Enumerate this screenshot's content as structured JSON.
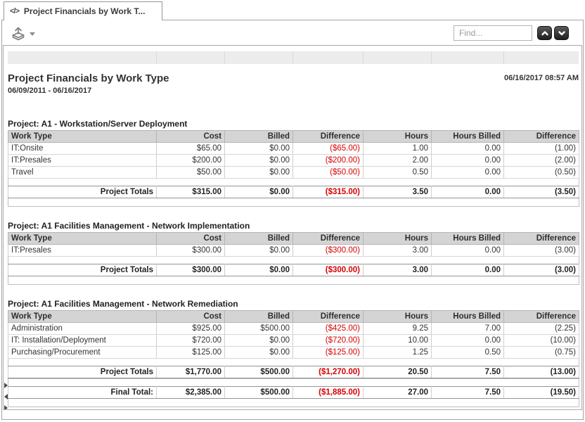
{
  "tab": {
    "icon_glyph": "</>",
    "label": "Project Financials by Work T..."
  },
  "toolbar": {
    "find_placeholder": "Find..."
  },
  "icons": {
    "tab": "code-icon",
    "export": "export-icon",
    "export_caret": "caret-down-icon",
    "find_previous": "chevron-up-icon",
    "find_next": "chevron-down-icon",
    "gutter_markers": [
      "triangle-right-icon",
      "triangle-left-icon",
      "triangle-right-icon"
    ]
  },
  "report": {
    "title": "Project Financials by Work Type",
    "date_range": "06/09/2011 - 06/16/2017",
    "generated": "06/16/2017 08:57 AM",
    "columns": [
      "Work Type",
      "Cost",
      "Billed",
      "Difference",
      "Hours",
      "Hours Billed",
      "Difference"
    ],
    "sections": [
      {
        "title": "Project: A1 - Workstation/Server Deployment",
        "rows": [
          [
            "IT:Onsite",
            "$65.00",
            "$0.00",
            "($65.00)",
            "1.00",
            "0.00",
            "(1.00)"
          ],
          [
            "IT:Presales",
            "$200.00",
            "$0.00",
            "($200.00)",
            "2.00",
            "0.00",
            "(2.00)"
          ],
          [
            "Travel",
            "$50.00",
            "$0.00",
            "($50.00)",
            "0.50",
            "0.00",
            "(0.50)"
          ]
        ],
        "totals": [
          "Project Totals",
          "$315.00",
          "$0.00",
          "($315.00)",
          "3.50",
          "0.00",
          "(3.50)"
        ]
      },
      {
        "title": "Project: A1 Facilities Management - Network Implementation",
        "rows": [
          [
            "IT:Presales",
            "$300.00",
            "$0.00",
            "($300.00)",
            "3.00",
            "0.00",
            "(3.00)"
          ]
        ],
        "totals": [
          "Project Totals",
          "$300.00",
          "$0.00",
          "($300.00)",
          "3.00",
          "0.00",
          "(3.00)"
        ]
      },
      {
        "title": "Project: A1 Facilities Management - Network Remediation",
        "rows": [
          [
            "Administration",
            "$925.00",
            "$500.00",
            "($425.00)",
            "9.25",
            "7.00",
            "(2.25)"
          ],
          [
            "IT: Installation/Deployment",
            "$720.00",
            "$0.00",
            "($720.00)",
            "10.00",
            "0.00",
            "(10.00)"
          ],
          [
            "Purchasing/Procurement",
            "$125.00",
            "$0.00",
            "($125.00)",
            "1.25",
            "0.50",
            "(0.75)"
          ]
        ],
        "totals": [
          "Project Totals",
          "$1,770.00",
          "$500.00",
          "($1,270.00)",
          "20.50",
          "7.50",
          "(13.00)"
        ]
      }
    ],
    "final_total": [
      "Final Total:",
      "$2,385.00",
      "$500.00",
      "($1,885.00)",
      "27.00",
      "7.50",
      "(19.50)"
    ]
  },
  "colors": {
    "negative": "#d90000",
    "table_header_bg": "#d4d4d4",
    "ruler_band_bg": "#ececec"
  }
}
